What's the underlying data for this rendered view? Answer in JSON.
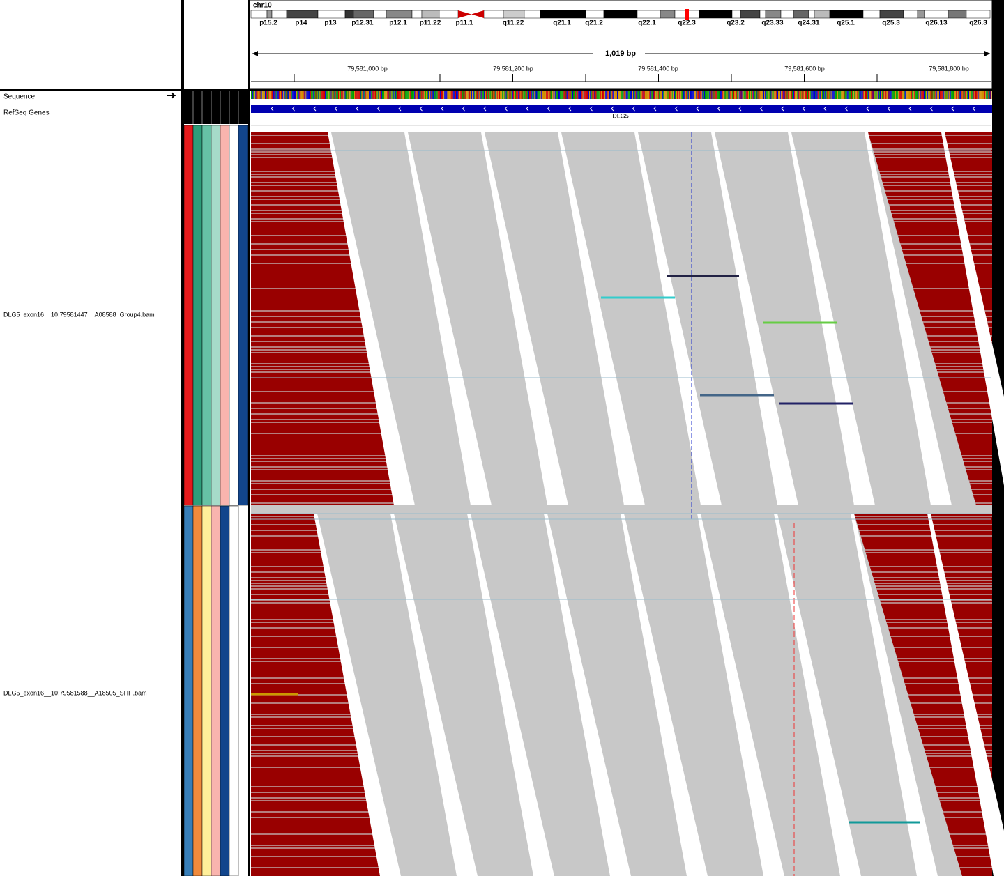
{
  "chromosome": "chr10",
  "cytobands": [
    "p15.2",
    "p14",
    "p13",
    "p12.31",
    "p12.1",
    "p11.22",
    "p11.1",
    "q11.22",
    "q21.1",
    "q21.2",
    "q22.1",
    "q22.3",
    "q23.2",
    "q23.33",
    "q24.31",
    "q25.1",
    "q25.3",
    "q26.13",
    "q26.3"
  ],
  "ruler": {
    "span": "1,019 bp",
    "positions": [
      "79,581,000 bp",
      "79,581,200 bp",
      "79,581,400 bp",
      "79,581,600 bp",
      "79,581,800 bp"
    ]
  },
  "tracks": {
    "sequence": "Sequence",
    "genes": "RefSeq Genes",
    "gene_name": "DLG5",
    "alignments": [
      "DLG5_exon16__10:79581447__A08588_Group4.bam",
      "DLG5_exon16__10:79581588__A18505_SHH.bam"
    ]
  }
}
